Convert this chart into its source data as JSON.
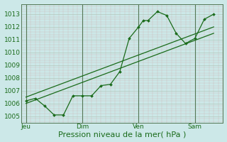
{
  "background_color": "#cce8e8",
  "grid_major_color": "#aaaaaa",
  "grid_minor_color": "#bbcccc",
  "line_color": "#1a6b1a",
  "xlabel": "Pression niveau de la mer( hPa )",
  "ylim": [
    1004.5,
    1013.8
  ],
  "yticks": [
    1005,
    1006,
    1007,
    1008,
    1009,
    1010,
    1011,
    1012,
    1013
  ],
  "xtick_labels": [
    "Jeu",
    "Dim",
    "Ven",
    "Sam"
  ],
  "xtick_positions": [
    0,
    12,
    24,
    36
  ],
  "xlim": [
    -1,
    42
  ],
  "vline_positions": [
    0,
    12,
    24,
    36
  ],
  "series1_x": [
    0,
    2,
    4,
    6,
    8,
    10,
    12,
    14,
    16,
    18,
    20,
    22,
    24,
    25,
    26,
    28,
    30,
    32,
    34,
    36,
    38,
    40
  ],
  "series1_y": [
    1006.2,
    1006.4,
    1005.8,
    1005.1,
    1005.1,
    1006.6,
    1006.6,
    1006.6,
    1007.4,
    1007.5,
    1008.5,
    1011.1,
    1012.0,
    1012.5,
    1012.5,
    1013.2,
    1012.9,
    1011.5,
    1010.7,
    1011.1,
    1012.6,
    1013.0
  ],
  "series2_x": [
    0,
    40
  ],
  "series2_y": [
    1006.0,
    1011.5
  ],
  "series3_x": [
    0,
    40
  ],
  "series3_y": [
    1006.5,
    1012.0
  ],
  "xlabel_fontsize": 8,
  "tick_fontsize": 6.5
}
